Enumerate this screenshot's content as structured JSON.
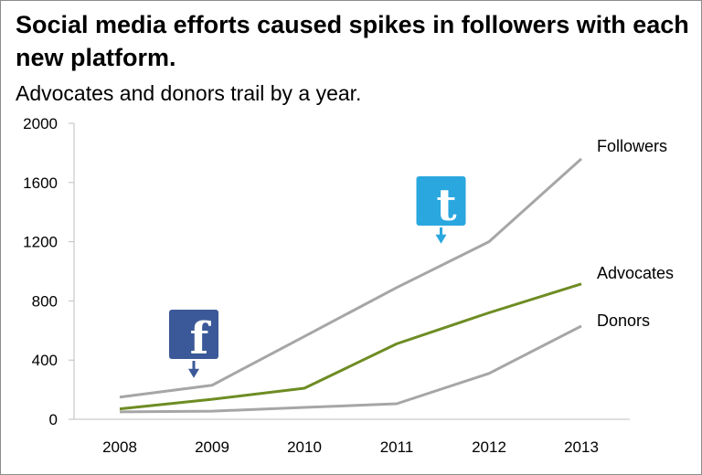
{
  "chart_data": {
    "type": "line",
    "title": "Social media efforts caused spikes in followers with each new platform.",
    "subtitle": "Advocates and donors trail by a year.",
    "x": [
      "2008",
      "2009",
      "2010",
      "2011",
      "2012",
      "2013"
    ],
    "yticks": [
      "0",
      "400",
      "800",
      "1200",
      "1600",
      "2000"
    ],
    "ylim": [
      0,
      2000
    ],
    "grid": false,
    "series": [
      {
        "name": "Followers",
        "values": [
          150,
          230,
          560,
          890,
          1200,
          1760
        ],
        "color": "#a6a6a6"
      },
      {
        "name": "Advocates",
        "values": [
          70,
          135,
          210,
          510,
          720,
          915
        ],
        "color": "#6e8c23"
      },
      {
        "name": "Donors",
        "values": [
          50,
          55,
          80,
          105,
          310,
          630
        ],
        "color": "#a6a6a6"
      }
    ],
    "annotations": [
      {
        "icon": "facebook-icon",
        "letter": "f",
        "color": "#3b5998",
        "x": "2009",
        "y": 230
      },
      {
        "icon": "tumblr-icon",
        "letter": "t",
        "color": "#2aa7df",
        "x_between": [
          "2011",
          "2012"
        ],
        "y": 1100
      }
    ]
  }
}
